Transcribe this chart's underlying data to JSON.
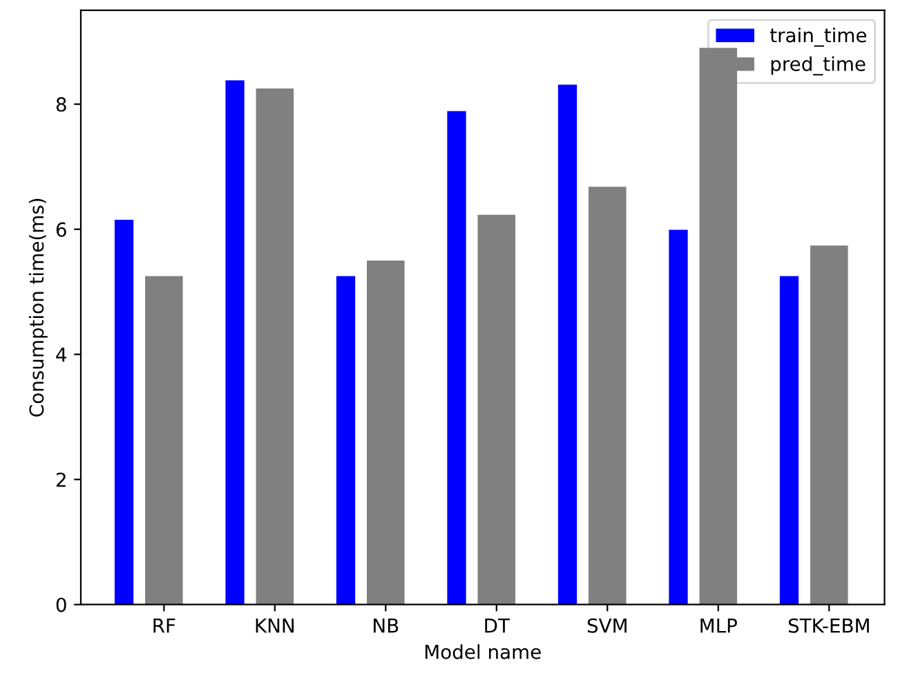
{
  "chart_data": {
    "type": "bar",
    "xlabel": "Model name",
    "ylabel": "Consumption time(ms)",
    "categories": [
      "RF",
      "KNN",
      "NB",
      "DT",
      "SVM",
      "MLP",
      "STK-EBM"
    ],
    "series": [
      {
        "name": "train_time",
        "color": "#0000ff",
        "values": [
          6.15,
          8.38,
          5.25,
          7.89,
          8.31,
          5.99,
          5.25
        ]
      },
      {
        "name": "pred_time",
        "color": "#808080",
        "values": [
          5.25,
          8.25,
          5.5,
          6.23,
          6.68,
          8.9,
          5.74
        ]
      }
    ],
    "ylim": [
      0,
      9.5
    ],
    "yticks": [
      0,
      2,
      4,
      6,
      8
    ],
    "grid": false,
    "legend": "top right"
  }
}
